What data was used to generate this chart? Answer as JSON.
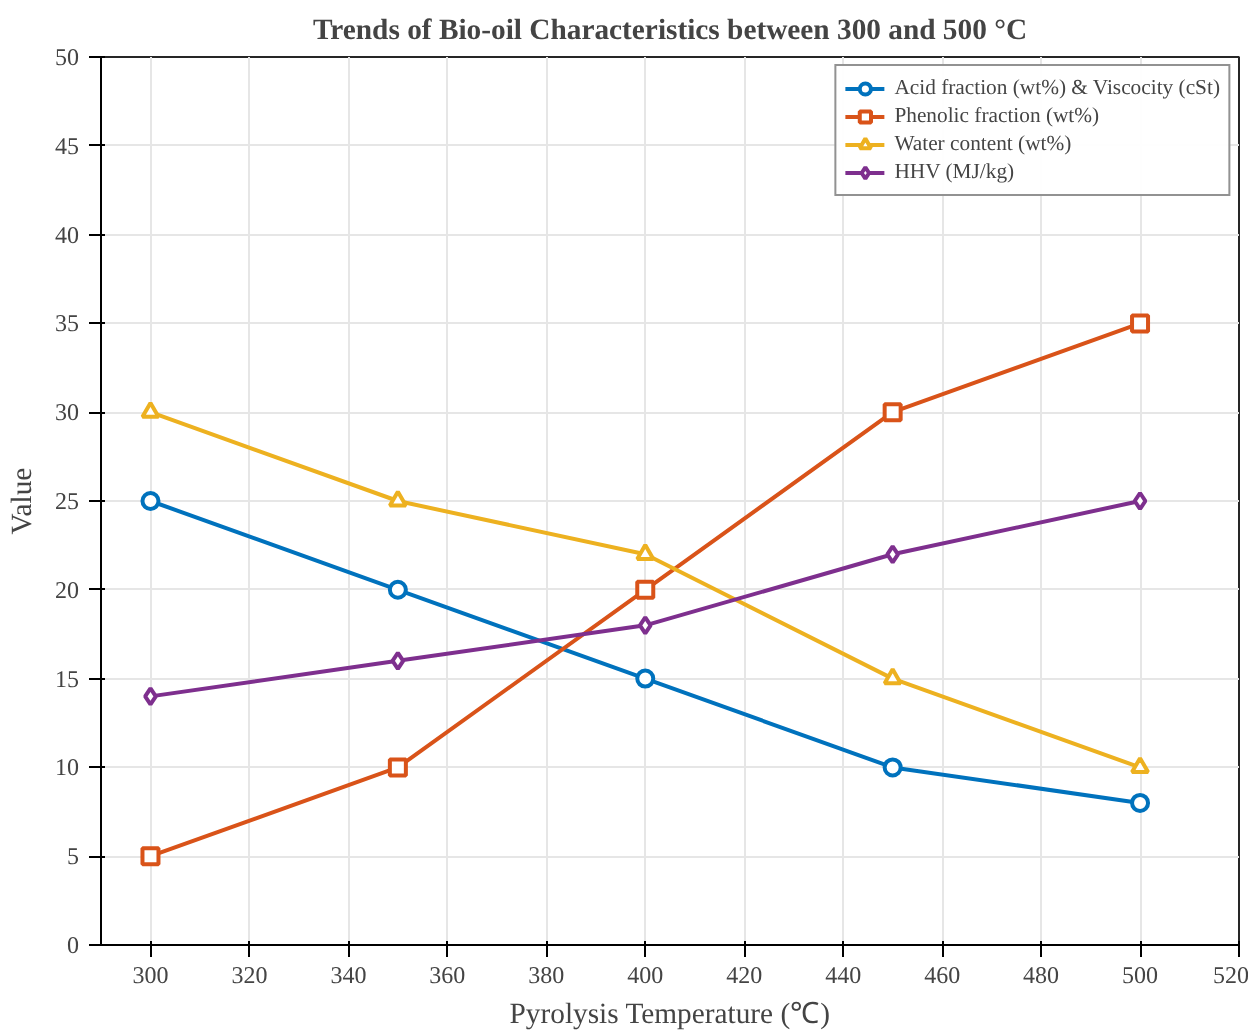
{
  "chart_data": {
    "type": "line",
    "title": "Trends of Bio-oil Characteristics between 300 and 500 °C",
    "xlabel": "Pyrolysis Temperature (℃)",
    "ylabel": "Value",
    "x": [
      300,
      350,
      400,
      450,
      500
    ],
    "series": [
      {
        "name": "Acid fraction (wt%) & Viscocity (cSt)",
        "color": "#0072bd",
        "marker": "circle",
        "values": [
          25,
          20,
          15,
          10,
          8
        ]
      },
      {
        "name": "Phenolic fraction (wt%)",
        "color": "#d95319",
        "marker": "square",
        "values": [
          5,
          10,
          20,
          30,
          35
        ]
      },
      {
        "name": "Water content (wt%)",
        "color": "#edb120",
        "marker": "triangle",
        "values": [
          30,
          25,
          22,
          15,
          10
        ]
      },
      {
        "name": "HHV (MJ/kg)",
        "color": "#7e2f8e",
        "marker": "diamond",
        "values": [
          14,
          16,
          18,
          22,
          25
        ]
      }
    ],
    "xlim": [
      290,
      520
    ],
    "xticks": [
      300,
      320,
      340,
      360,
      380,
      400,
      420,
      440,
      460,
      480,
      500,
      520
    ],
    "ylim": [
      0,
      50
    ],
    "yticks": [
      0,
      5,
      10,
      15,
      20,
      25,
      30,
      35,
      40,
      45,
      50
    ],
    "grid": true,
    "legend": "top right",
    "line_style": "solid"
  }
}
